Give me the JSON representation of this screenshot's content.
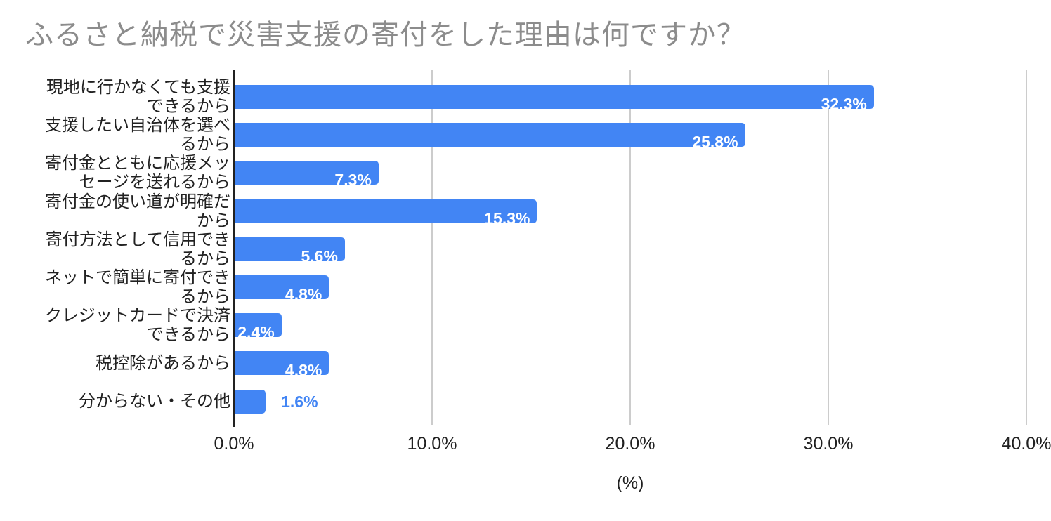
{
  "title": "ふるさと納税で災害支援の寄付をした理由は何ですか？",
  "colors": {
    "bar": "#4285f4",
    "grid": "#cccccc",
    "axis": "#212121",
    "title_text": "#8c8c8c",
    "category_text": "#212121",
    "data_label_inside": "#ffffff",
    "data_label_outside": "#4285f4"
  },
  "chart_data": {
    "type": "bar",
    "orientation": "horizontal",
    "title": "ふるさと納税で災害支援の寄付をした理由は何ですか？",
    "categories": [
      "現地に行かなくても支援できるから",
      "支援したい自治体を選べるから",
      "寄付金とともに応援メッセージを送れるから",
      "寄付金の使い道が明確だから",
      "寄付方法として信用できるから",
      "ネットで簡単に寄付できるから",
      "クレジットカードで決済できるから",
      "税控除があるから",
      "分からない・その他"
    ],
    "values": [
      32.3,
      25.8,
      7.3,
      15.3,
      5.6,
      4.8,
      2.4,
      4.8,
      1.6
    ],
    "value_labels": [
      "32.3%",
      "25.8%",
      "7.3%",
      "15.3%",
      "5.6%",
      "4.8%",
      "2.4%",
      "4.8%",
      "1.6%"
    ],
    "xlabel": "(%)",
    "xlim": [
      0,
      40
    ],
    "x_ticks": [
      "0.0%",
      "10.0%",
      "20.0%",
      "30.0%",
      "40.0%"
    ],
    "grid": true,
    "legend": "none"
  }
}
